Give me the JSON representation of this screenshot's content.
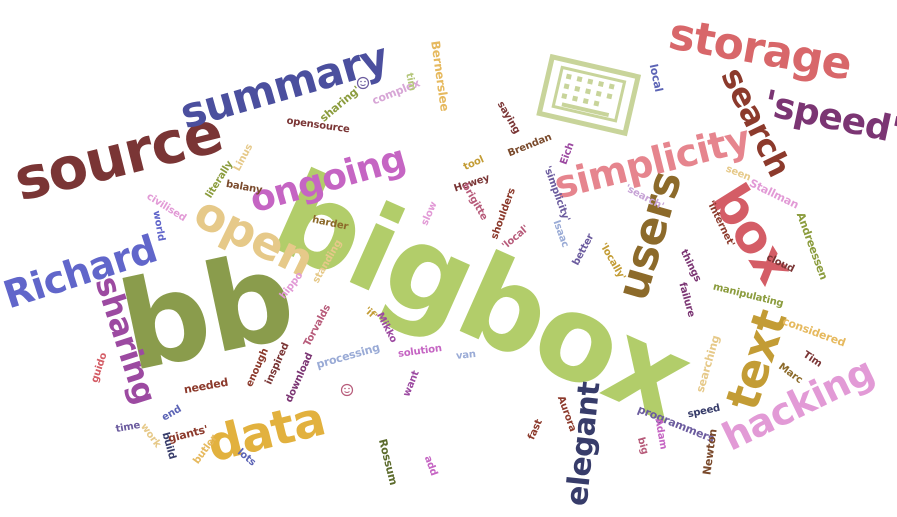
{
  "words": [
    {
      "text": "bigbox",
      "color": "#b2cd6a"
    },
    {
      "text": "bb",
      "color": "#8a9c4c"
    },
    {
      "text": "source",
      "color": "#7a3535"
    },
    {
      "text": "storage",
      "color": "#d8676a"
    },
    {
      "text": "summary",
      "color": "#4b4f9e"
    },
    {
      "text": "search",
      "color": "#8c3a2c"
    },
    {
      "text": "'speed'",
      "color": "#7b3573"
    },
    {
      "text": "simplicity",
      "color": "#e6858e"
    },
    {
      "text": "ongoing",
      "color": "#c565c3"
    },
    {
      "text": "open",
      "color": "#e6c989"
    },
    {
      "text": "users",
      "color": "#8c6a2a"
    },
    {
      "text": "box",
      "color": "#d45d66"
    },
    {
      "text": "Richard",
      "color": "#6166ca"
    },
    {
      "text": "sharing",
      "color": "#9c4aa1"
    },
    {
      "text": "data",
      "color": "#e2b13e"
    },
    {
      "text": "text",
      "color": "#c39c35"
    },
    {
      "text": "hacking",
      "color": "#e29ad6"
    },
    {
      "text": "elegant",
      "color": "#373c6a"
    },
    {
      "text": "Bernerslee",
      "color": "#e6b95e"
    },
    {
      "text": "complex",
      "color": "#d7a6d6"
    },
    {
      "text": "sharing'",
      "color": "#8b9c3d"
    },
    {
      "text": "opensource",
      "color": "#7a3535"
    },
    {
      "text": "tim",
      "color": "#b4c67a"
    },
    {
      "text": "local",
      "color": "#5b63b5"
    },
    {
      "text": "saying",
      "color": "#7a3535"
    },
    {
      "text": "Brendan",
      "color": "#7a4a2c"
    },
    {
      "text": "Eich",
      "color": "#9c4aa1"
    },
    {
      "text": "tool",
      "color": "#c39c35"
    },
    {
      "text": "Hewey",
      "color": "#7a3535"
    },
    {
      "text": "'simplicity'",
      "color": "#6b5b9e"
    },
    {
      "text": "brigitte",
      "color": "#b75b7a"
    },
    {
      "text": "shoulders",
      "color": "#8c3a2c"
    },
    {
      "text": "'search'",
      "color": "#c7a3d6"
    },
    {
      "text": "seen",
      "color": "#e6c989"
    },
    {
      "text": "Stallman",
      "color": "#e29ad6"
    },
    {
      "text": "'internet'",
      "color": "#8c3a2c"
    },
    {
      "text": "Andreessen",
      "color": "#8b9c3d"
    },
    {
      "text": "cloud",
      "color": "#7a3535"
    },
    {
      "text": "better",
      "color": "#6b5b9e"
    },
    {
      "text": "Isaac",
      "color": "#9aabd6"
    },
    {
      "text": "'local'",
      "color": "#b75b7a"
    },
    {
      "text": "things",
      "color": "#7b3573"
    },
    {
      "text": "'locally'",
      "color": "#c39c35"
    },
    {
      "text": "failure",
      "color": "#7b3573"
    },
    {
      "text": "manipulating",
      "color": "#8b9c3d"
    },
    {
      "text": "considered",
      "color": "#e6b95e"
    },
    {
      "text": "Marc",
      "color": "#8c6a2a"
    },
    {
      "text": "Tim",
      "color": "#7a3535"
    },
    {
      "text": "searching",
      "color": "#e6c989"
    },
    {
      "text": "speed",
      "color": "#373c6a"
    },
    {
      "text": "programmers",
      "color": "#6b5b9e"
    },
    {
      "text": "Adam",
      "color": "#c565c3"
    },
    {
      "text": "Newton",
      "color": "#7a4a2c"
    },
    {
      "text": "big",
      "color": "#b75b7a"
    },
    {
      "text": "Aurora",
      "color": "#8c3a2c"
    },
    {
      "text": "fast",
      "color": "#8c3a2c"
    },
    {
      "text": "add",
      "color": "#c565c3"
    },
    {
      "text": "Rossum",
      "color": "#5c6b2c"
    },
    {
      "text": "lots",
      "color": "#5b63b5"
    },
    {
      "text": "want",
      "color": "#9c4aa1"
    },
    {
      "text": "van",
      "color": "#9aabd6"
    },
    {
      "text": "solution",
      "color": "#c565c3"
    },
    {
      "text": "'if'",
      "color": "#c39c35"
    },
    {
      "text": "Mikko",
      "color": "#9c4aa1"
    },
    {
      "text": "processing",
      "color": "#9aabd6"
    },
    {
      "text": "Torvalds",
      "color": "#b75b7a"
    },
    {
      "text": "hippo",
      "color": "#e29ad6"
    },
    {
      "text": "standing",
      "color": "#e6c989"
    },
    {
      "text": "harder",
      "color": "#8c6a2a"
    },
    {
      "text": "slow",
      "color": "#e29ad6"
    },
    {
      "text": "inspired",
      "color": "#7a3535"
    },
    {
      "text": "download",
      "color": "#7b3573"
    },
    {
      "text": "enough",
      "color": "#8c3a2c"
    },
    {
      "text": "needed",
      "color": "#8c3a2c"
    },
    {
      "text": "giants'",
      "color": "#8c3a2c"
    },
    {
      "text": "build",
      "color": "#373c6a"
    },
    {
      "text": "butler",
      "color": "#e6b95e"
    },
    {
      "text": "work",
      "color": "#e6c989"
    },
    {
      "text": "end",
      "color": "#5b63b5"
    },
    {
      "text": "time",
      "color": "#6b5b9e"
    },
    {
      "text": "guido",
      "color": "#d45d66"
    },
    {
      "text": "literally",
      "color": "#8b9c3d"
    },
    {
      "text": "Linus",
      "color": "#e6c989"
    },
    {
      "text": "balany",
      "color": "#7a4a2c"
    },
    {
      "text": "civilised",
      "color": "#e29ad6"
    },
    {
      "text": "world",
      "color": "#6166ca"
    }
  ],
  "icons": [
    "keyboard-icon",
    "smile-icon",
    "smile-icon"
  ]
}
